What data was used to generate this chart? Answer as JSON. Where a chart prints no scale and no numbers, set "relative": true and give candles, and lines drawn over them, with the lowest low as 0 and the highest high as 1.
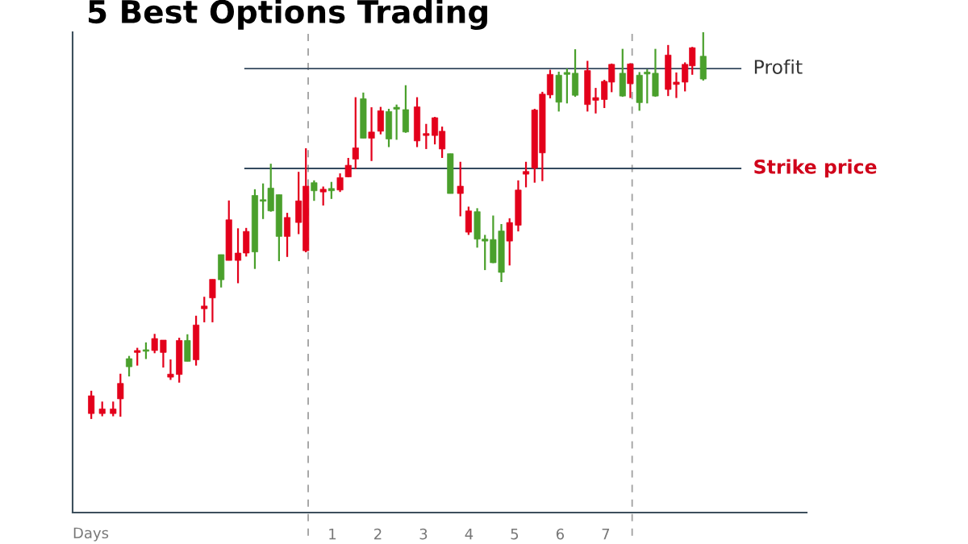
{
  "chart_data": {
    "type": "candlestick",
    "title": "5 Best Options Trading",
    "xlabel": "Days",
    "relative": true,
    "tick_labels": "x",
    "xlim": [
      -4.7,
      11.41
    ],
    "xticks": [
      1,
      2,
      3,
      4,
      5,
      6,
      7
    ],
    "x": [
      -4.29,
      -4.05,
      -3.81,
      -3.65,
      -3.46,
      -3.28,
      -3.09,
      -2.9,
      -2.71,
      -2.55,
      -2.36,
      -2.18,
      -1.99,
      -1.81,
      -1.63,
      -1.44,
      -1.27,
      -1.07,
      -0.89,
      -0.7,
      -0.52,
      -0.35,
      -0.17,
      0.01,
      0.26,
      0.42,
      0.6,
      0.8,
      0.98,
      1.17,
      1.35,
      1.51,
      1.68,
      1.86,
      2.06,
      2.24,
      2.41,
      2.61,
      2.86,
      3.06,
      3.25,
      3.41,
      3.59,
      3.81,
      3.99,
      4.18,
      4.35,
      4.53,
      4.71,
      4.89,
      5.08,
      5.25,
      5.44,
      5.61,
      5.78,
      5.97,
      6.15,
      6.33,
      6.6,
      6.78,
      6.97,
      7.13,
      7.37,
      7.54,
      7.74,
      7.91,
      8.09,
      8.37,
      8.55,
      8.74,
      8.9,
      9.14
    ],
    "ohlc": [
      [
        0.06,
        0.073,
        0,
        0.014
      ],
      [
        0.026,
        0.045,
        0.007,
        0.014
      ],
      [
        0.026,
        0.045,
        0.007,
        0.014
      ],
      [
        0.092,
        0.117,
        0.006,
        0.052
      ],
      [
        0.135,
        0.163,
        0.11,
        0.156
      ],
      [
        0.177,
        0.184,
        0.138,
        0.172
      ],
      [
        0.175,
        0.198,
        0.155,
        0.179
      ],
      [
        0.208,
        0.22,
        0.17,
        0.177
      ],
      [
        0.204,
        0.204,
        0.133,
        0.172
      ],
      [
        0.116,
        0.154,
        0.101,
        0.108
      ],
      [
        0.203,
        0.21,
        0.094,
        0.115
      ],
      [
        0.149,
        0.219,
        0.149,
        0.203
      ],
      [
        0.243,
        0.267,
        0.138,
        0.153
      ],
      [
        0.292,
        0.316,
        0.25,
        0.285
      ],
      [
        0.361,
        0.361,
        0.25,
        0.313
      ],
      [
        0.36,
        0.425,
        0.34,
        0.425
      ],
      [
        0.515,
        0.565,
        0.41,
        0.41
      ],
      [
        0.429,
        0.493,
        0.351,
        0.41
      ],
      [
        0.485,
        0.494,
        0.42,
        0.429
      ],
      [
        0.432,
        0.594,
        0.388,
        0.578
      ],
      [
        0.563,
        0.609,
        0.517,
        0.567
      ],
      [
        0.538,
        0.66,
        0.536,
        0.597
      ],
      [
        0.472,
        0.58,
        0.408,
        0.58
      ],
      [
        0.521,
        0.533,
        0.419,
        0.472
      ],
      [
        0.564,
        0.639,
        0.478,
        0.508
      ],
      [
        0.602,
        0.7,
        0.431,
        0.435
      ],
      [
        0.59,
        0.617,
        0.564,
        0.611
      ],
      [
        0.594,
        0.601,
        0.552,
        0.587
      ],
      [
        0.59,
        0.613,
        0.569,
        0.596
      ],
      [
        0.624,
        0.635,
        0.587,
        0.592
      ],
      [
        0.656,
        0.675,
        0.625,
        0.626
      ],
      [
        0.701,
        0.832,
        0.646,
        0.672
      ],
      [
        0.726,
        0.844,
        0.726,
        0.828
      ],
      [
        0.742,
        0.806,
        0.667,
        0.726
      ],
      [
        0.797,
        0.807,
        0.736,
        0.744
      ],
      [
        0.724,
        0.802,
        0.703,
        0.795
      ],
      [
        0.801,
        0.813,
        0.722,
        0.806
      ],
      [
        0.742,
        0.863,
        0.74,
        0.8
      ],
      [
        0.807,
        0.832,
        0.703,
        0.719
      ],
      [
        0.738,
        0.763,
        0.698,
        0.733
      ],
      [
        0.779,
        0.781,
        0.71,
        0.733
      ],
      [
        0.744,
        0.756,
        0.675,
        0.698
      ],
      [
        0.583,
        0.686,
        0.583,
        0.686
      ],
      [
        0.602,
        0.665,
        0.524,
        0.583
      ],
      [
        0.538,
        0.549,
        0.476,
        0.483
      ],
      [
        0.465,
        0.545,
        0.443,
        0.536
      ],
      [
        0.46,
        0.476,
        0.385,
        0.465
      ],
      [
        0.404,
        0.526,
        0.403,
        0.464
      ],
      [
        0.379,
        0.504,
        0.354,
        0.486
      ],
      [
        0.508,
        0.519,
        0.397,
        0.46
      ],
      [
        0.592,
        0.617,
        0.485,
        0.501
      ],
      [
        0.64,
        0.665,
        0.599,
        0.633
      ],
      [
        0.799,
        0.802,
        0.611,
        0.649
      ],
      [
        0.84,
        0.846,
        0.615,
        0.688
      ],
      [
        0.891,
        0.903,
        0.829,
        0.838
      ],
      [
        0.819,
        0.898,
        0.795,
        0.889
      ],
      [
        0.891,
        0.906,
        0.816,
        0.896
      ],
      [
        0.837,
        0.956,
        0.833,
        0.894
      ],
      [
        0.901,
        0.926,
        0.795,
        0.813
      ],
      [
        0.831,
        0.856,
        0.79,
        0.824
      ],
      [
        0.873,
        0.877,
        0.804,
        0.826
      ],
      [
        0.917,
        0.919,
        0.845,
        0.871
      ],
      [
        0.835,
        0.957,
        0.833,
        0.894
      ],
      [
        0.918,
        0.92,
        0.83,
        0.867
      ],
      [
        0.818,
        0.897,
        0.797,
        0.889
      ],
      [
        0.892,
        0.904,
        0.816,
        0.897
      ],
      [
        0.835,
        0.957,
        0.833,
        0.894
      ],
      [
        0.941,
        0.967,
        0.835,
        0.852
      ],
      [
        0.871,
        0.896,
        0.83,
        0.865
      ],
      [
        0.917,
        0.922,
        0.847,
        0.871
      ],
      [
        0.96,
        0.962,
        0.89,
        0.913
      ],
      [
        0.879,
        1.0,
        0.875,
        0.938
      ]
    ],
    "colors": [
      "#e3001b",
      "#e3001b",
      "#e3001b",
      "#e3001b",
      "#4aa02c",
      "#e3001b",
      "#4aa02c",
      "#e3001b",
      "#e3001b",
      "#e3001b",
      "#e3001b",
      "#4aa02c",
      "#e3001b",
      "#e3001b",
      "#e3001b",
      "#4aa02c",
      "#e3001b",
      "#e3001b",
      "#e3001b",
      "#4aa02c",
      "#4aa02c",
      "#4aa02c",
      "#4aa02c",
      "#e3001b",
      "#e3001b",
      "#e3001b",
      "#4aa02c",
      "#e3001b",
      "#4aa02c",
      "#e3001b",
      "#e3001b",
      "#e3001b",
      "#4aa02c",
      "#e3001b",
      "#e3001b",
      "#4aa02c",
      "#4aa02c",
      "#4aa02c",
      "#e3001b",
      "#e3001b",
      "#e3001b",
      "#e3001b",
      "#4aa02c",
      "#e3001b",
      "#e3001b",
      "#4aa02c",
      "#4aa02c",
      "#4aa02c",
      "#4aa02c",
      "#e3001b",
      "#e3001b",
      "#e3001b",
      "#e3001b",
      "#e3001b",
      "#e3001b",
      "#4aa02c",
      "#4aa02c",
      "#4aa02c",
      "#e3001b",
      "#e3001b",
      "#e3001b",
      "#e3001b",
      "#4aa02c",
      "#e3001b",
      "#4aa02c",
      "#4aa02c",
      "#4aa02c",
      "#e3001b",
      "#e3001b",
      "#e3001b",
      "#e3001b",
      "#4aa02c"
    ],
    "ref_lines": [
      {
        "axis": "y",
        "value": 0.906,
        "label": "Profit",
        "color": "#34495e",
        "line_style": "solid"
      },
      {
        "axis": "y",
        "value": 0.648,
        "label": "Strike price",
        "color": "#34495e",
        "line_style": "solid"
      },
      {
        "axis": "x",
        "value": 0.47,
        "color": "#a0a0a0",
        "line_style": "dashed"
      },
      {
        "axis": "x",
        "value": 7.58,
        "color": "#a0a0a0",
        "line_style": "dashed"
      }
    ]
  }
}
